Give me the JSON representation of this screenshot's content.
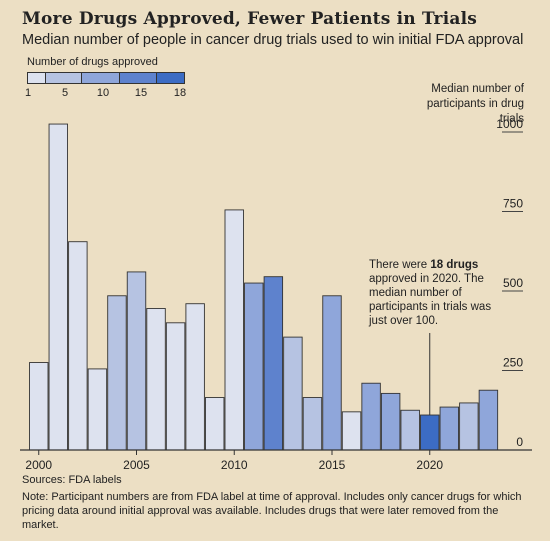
{
  "header": {
    "title": "More Drugs Approved, Fewer Patients in Trials",
    "subtitle": "Median number of people in cancer drug trials used to win initial FDA approval"
  },
  "legend": {
    "title": "Number of drugs approved",
    "ticks": [
      "1",
      "5",
      "10",
      "15",
      "18"
    ],
    "colors": [
      "#dde2ef",
      "#b6c3e2",
      "#8fa6da",
      "#5e82cd"
    ]
  },
  "annotation": {
    "before": "There were ",
    "bold": "18 drugs",
    "after": " approved in 2020. The median number of participants in trials was just over 100."
  },
  "footer": {
    "source": "Sources: FDA labels",
    "note": "Note: Participant numbers are from FDA label at time of approval. Includes only cancer drugs for which pricing data around initial approval was available. Includes drugs that were later removed from the market."
  },
  "chart_data": {
    "type": "bar",
    "title": "More Drugs Approved, Fewer Patients in Trials",
    "ylabel": "Median number of participants in drug trials",
    "ylim": [
      0,
      1000
    ],
    "yticks": [
      0,
      250,
      500,
      750,
      1000
    ],
    "xticks": [
      2000,
      2005,
      2010,
      2015,
      2020
    ],
    "x": [
      2000,
      2001,
      2002,
      2003,
      2004,
      2005,
      2006,
      2007,
      2008,
      2009,
      2010,
      2011,
      2012,
      2013,
      2014,
      2015,
      2016,
      2017,
      2018,
      2019,
      2020,
      2021,
      2022,
      2023
    ],
    "values": [
      275,
      1025,
      655,
      255,
      485,
      560,
      445,
      400,
      460,
      165,
      755,
      525,
      545,
      355,
      165,
      485,
      120,
      210,
      178,
      125,
      110,
      135,
      148,
      188
    ],
    "drugs_approved_bin": [
      0,
      0,
      0,
      0,
      1,
      1,
      0,
      0,
      0,
      0,
      0,
      2,
      3,
      1,
      1,
      2,
      0,
      2,
      2,
      1,
      4,
      2,
      1,
      2
    ],
    "colors": [
      "#dde2ef",
      "#b6c3e2",
      "#8fa6da",
      "#5e82cd",
      "#3c6cc4"
    ],
    "annotation_year": 2020,
    "grid": false
  }
}
